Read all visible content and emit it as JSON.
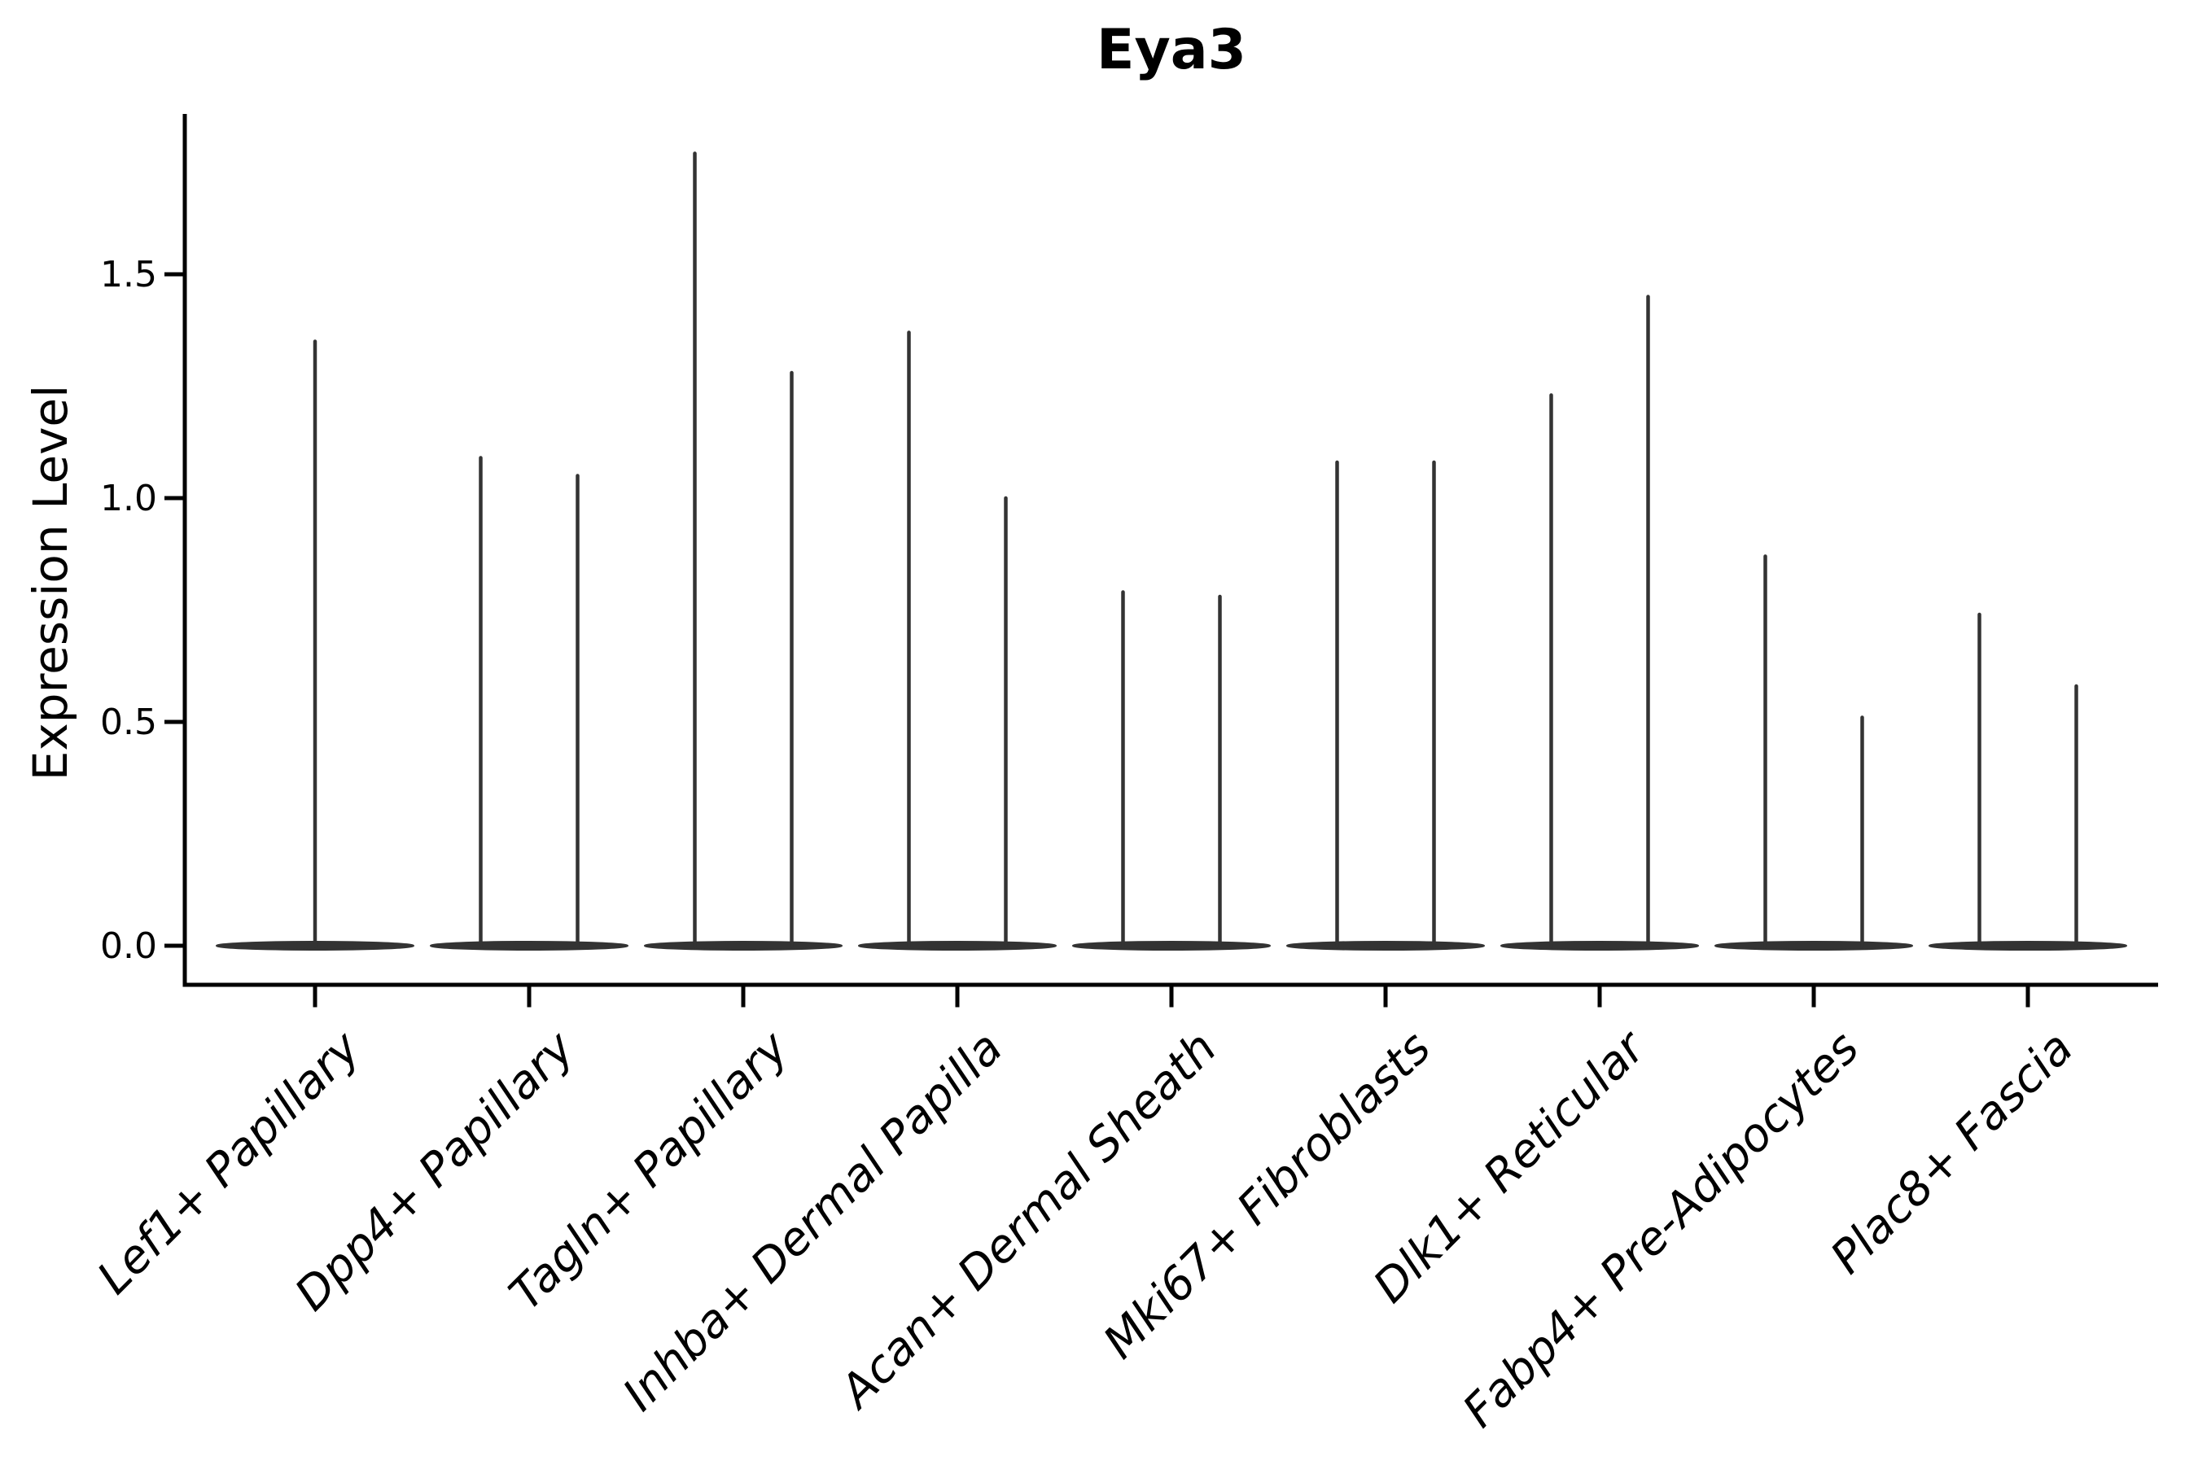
{
  "chart_data": {
    "type": "violin",
    "title": "Eya3",
    "ylabel": "Expression Level",
    "xlabel": "",
    "yticks": [
      "0.0",
      "0.5",
      "1.0",
      "1.5"
    ],
    "ytick_values": [
      0.0,
      0.5,
      1.0,
      1.5
    ],
    "ylim": [
      -0.089,
      1.859
    ],
    "grid": false,
    "legend": "none",
    "baseline_value": 0.0,
    "categories": [
      "Lef1+ Papillary",
      "Dpp4+ Papillary",
      "Tagln+ Papillary",
      "Inhba+ Dermal Papilla",
      "Acan+ Dermal Sheath",
      "Mki67+ Fibroblasts",
      "Dlk1+ Reticular",
      "Fabp4+ Pre-Adipocytes",
      "Plac8+ Fascia"
    ],
    "series": [
      {
        "category": "Lef1+ Papillary",
        "violin_max_values": [
          1.35
        ]
      },
      {
        "category": "Dpp4+ Papillary",
        "violin_max_values": [
          1.09,
          1.05
        ]
      },
      {
        "category": "Tagln+ Papillary",
        "violin_max_values": [
          1.77,
          1.28
        ]
      },
      {
        "category": "Inhba+ Dermal Papilla",
        "violin_max_values": [
          1.37,
          1.0
        ]
      },
      {
        "category": "Acan+ Dermal Sheath",
        "violin_max_values": [
          0.79,
          0.78
        ]
      },
      {
        "category": "Mki67+ Fibroblasts",
        "violin_max_values": [
          1.08,
          1.08
        ]
      },
      {
        "category": "Dlk1+ Reticular",
        "violin_max_values": [
          1.23,
          1.45
        ]
      },
      {
        "category": "Fabp4+ Pre-Adipocytes",
        "violin_max_values": [
          0.87,
          0.51
        ]
      },
      {
        "category": "Plac8+ Fascia",
        "violin_max_values": [
          0.74,
          0.58
        ]
      }
    ],
    "colors": {
      "violin": "#333333",
      "axis": "#000000",
      "text": "#000000",
      "background": "#ffffff"
    }
  }
}
